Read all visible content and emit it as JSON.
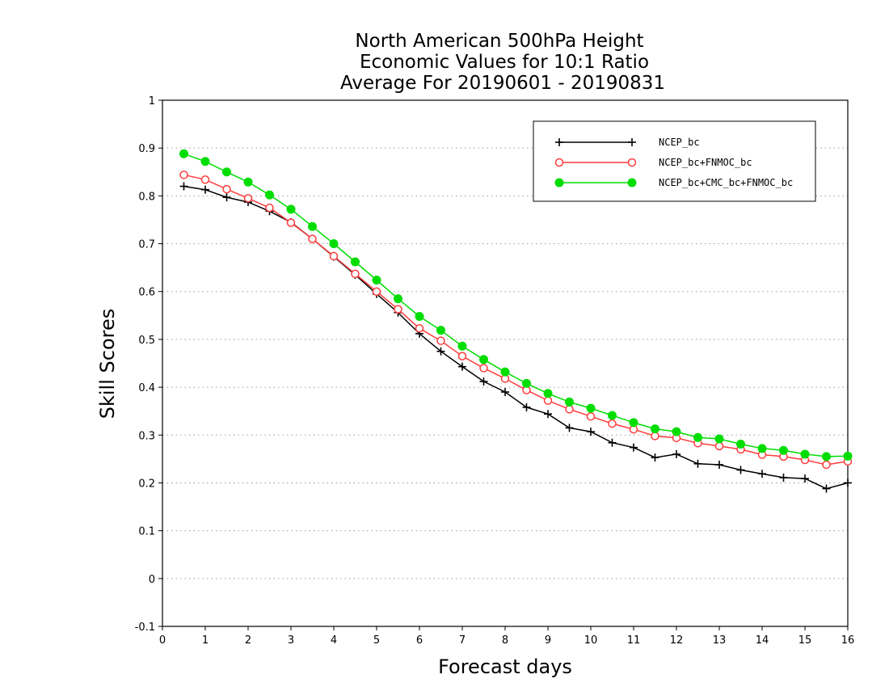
{
  "chart_data": {
    "type": "line",
    "title_lines": [
      "North American 500hPa Height",
      "Economic Values for 10:1 Ratio",
      "Average For 20190601 - 20190831"
    ],
    "xlabel": "Forecast days",
    "ylabel": "Skill Scores",
    "xlim": [
      0,
      16
    ],
    "ylim": [
      -0.1,
      1
    ],
    "x_ticks": [
      0,
      1,
      2,
      3,
      4,
      5,
      6,
      7,
      8,
      9,
      10,
      11,
      12,
      13,
      14,
      15,
      16
    ],
    "y_ticks": [
      -0.1,
      0,
      0.1,
      0.2,
      0.3,
      0.4,
      0.5,
      0.6,
      0.7,
      0.8,
      0.9,
      1
    ],
    "y_tick_labels": [
      "-0.1",
      "0",
      "0.1",
      "0.2",
      "0.3",
      "0.4",
      "0.5",
      "0.6",
      "0.7",
      "0.8",
      "0.9",
      "1"
    ],
    "grid": "horizontal dotted",
    "legend_position": "top-right",
    "x": [
      0.5,
      1,
      1.5,
      2,
      2.5,
      3,
      3.5,
      4,
      4.5,
      5,
      5.5,
      6,
      6.5,
      7,
      7.5,
      8,
      8.5,
      9,
      9.5,
      10,
      10.5,
      11,
      11.5,
      12,
      12.5,
      13,
      13.5,
      14,
      14.5,
      15,
      15.5,
      16
    ],
    "series": [
      {
        "name": "NCEP_bc",
        "color": "#000000",
        "marker": "plus",
        "values": [
          0.82,
          0.813,
          0.797,
          0.787,
          0.768,
          0.745,
          0.71,
          0.673,
          0.635,
          0.595,
          0.556,
          0.512,
          0.475,
          0.443,
          0.412,
          0.39,
          0.358,
          0.344,
          0.315,
          0.307,
          0.284,
          0.274,
          0.253,
          0.26,
          0.24,
          0.238,
          0.227,
          0.219,
          0.211,
          0.209,
          0.188,
          0.2
        ]
      },
      {
        "name": "NCEP_bc+FNMOC_bc",
        "color": "#ff3b3b",
        "marker": "open-circle",
        "values": [
          0.844,
          0.834,
          0.814,
          0.795,
          0.775,
          0.744,
          0.71,
          0.674,
          0.637,
          0.6,
          0.563,
          0.523,
          0.497,
          0.465,
          0.44,
          0.418,
          0.394,
          0.372,
          0.354,
          0.339,
          0.324,
          0.312,
          0.298,
          0.294,
          0.283,
          0.277,
          0.27,
          0.259,
          0.255,
          0.248,
          0.238,
          0.245
        ]
      },
      {
        "name": "NCEP_bc+CMC_bc+FNMOC_bc",
        "color": "#00dd00",
        "marker": "filled-circle",
        "values": [
          0.888,
          0.872,
          0.85,
          0.829,
          0.802,
          0.772,
          0.736,
          0.7,
          0.662,
          0.624,
          0.585,
          0.548,
          0.519,
          0.486,
          0.458,
          0.432,
          0.408,
          0.387,
          0.369,
          0.356,
          0.341,
          0.326,
          0.313,
          0.307,
          0.295,
          0.292,
          0.281,
          0.272,
          0.268,
          0.26,
          0.255,
          0.256
        ]
      }
    ]
  }
}
